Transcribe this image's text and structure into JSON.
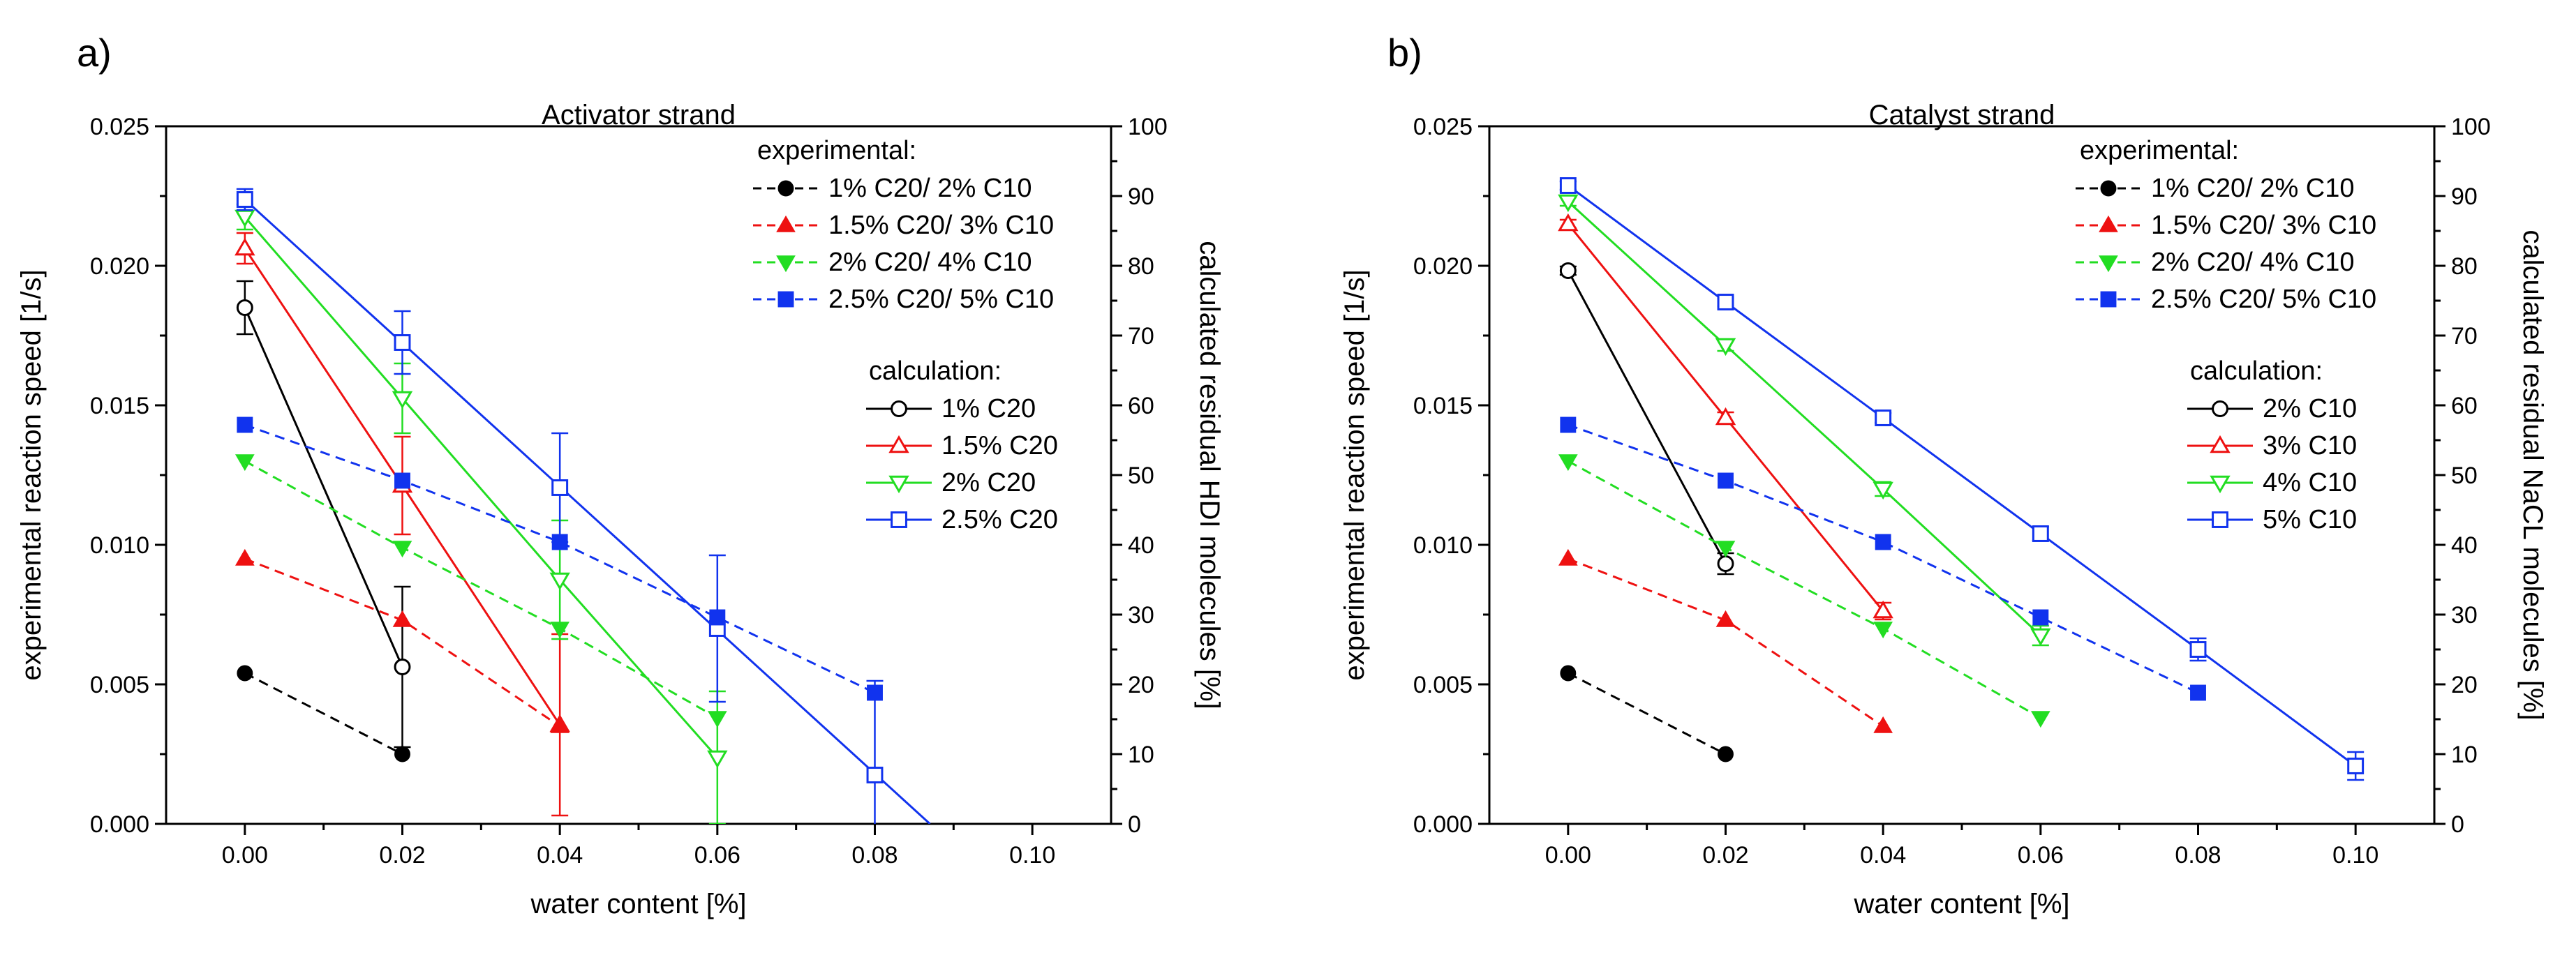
{
  "chart_data": [
    {
      "panel_label": "a)",
      "type": "line",
      "title": "Activator strand",
      "xlabel": "water content [%]",
      "ylabel": "experimental reaction speed [1/s]",
      "y2label": "calculated residual HDI molecules [%]",
      "xlim": [
        -0.01,
        0.11
      ],
      "ylim": [
        0,
        0.025
      ],
      "y2lim": [
        0,
        100
      ],
      "xticks": [
        0,
        0.02,
        0.04,
        0.06,
        0.08,
        0.1
      ],
      "xtick_labels": [
        "0.00",
        "0.02",
        "0.04",
        "0.06",
        "0.08",
        "0.10"
      ],
      "yticks": [
        0,
        0.005,
        0.01,
        0.015,
        0.02,
        0.025
      ],
      "ytick_labels": [
        "0.000",
        "0.005",
        "0.010",
        "0.015",
        "0.020",
        "0.025"
      ],
      "y2ticks": [
        0,
        10,
        20,
        30,
        40,
        50,
        60,
        70,
        80,
        90,
        100
      ],
      "y2tick_labels": [
        "0",
        "10",
        "20",
        "30",
        "40",
        "50",
        "60",
        "70",
        "80",
        "90",
        "100"
      ],
      "legend_experimental_title": "experimental:",
      "legend_calculation_title": "calculation:",
      "experimental": [
        {
          "name": "1% C20/ 2% C10",
          "color": "#000000",
          "marker": "circle",
          "x": [
            0,
            0.02
          ],
          "y": [
            0.0054,
            0.0025
          ]
        },
        {
          "name": "1.5% C20/ 3% C10",
          "color": "#ee1111",
          "marker": "triangle-up",
          "x": [
            0,
            0.02,
            0.04
          ],
          "y": [
            0.0095,
            0.0073,
            0.0035
          ]
        },
        {
          "name": "2% C20/ 4% C10",
          "color": "#22dd22",
          "marker": "triangle-down",
          "x": [
            0,
            0.02,
            0.04,
            0.06
          ],
          "y": [
            0.013,
            0.0099,
            0.007,
            0.0038
          ]
        },
        {
          "name": "2.5% C20/ 5% C10",
          "color": "#1133ee",
          "marker": "square",
          "x": [
            0,
            0.02,
            0.04,
            0.06,
            0.08
          ],
          "y": [
            0.0143,
            0.0123,
            0.0101,
            0.0074,
            0.0047
          ]
        }
      ],
      "calculation": [
        {
          "name": "1% C20",
          "color": "#000000",
          "marker": "circle",
          "x": [
            0,
            0.02
          ],
          "y2": [
            74,
            22.5
          ],
          "err": [
            3.8,
            11.5
          ]
        },
        {
          "name": "1.5% C20",
          "color": "#ee1111",
          "marker": "triangle-up",
          "x": [
            0,
            0.02,
            0.04
          ],
          "y2": [
            82.5,
            48.5,
            14.2
          ],
          "err": [
            2.2,
            7.0,
            13.0
          ]
        },
        {
          "name": "2% C20",
          "color": "#22dd22",
          "marker": "triangle-down",
          "x": [
            0,
            0.02,
            0.04,
            0.06
          ],
          "y2": [
            87,
            61,
            35,
            9.5
          ],
          "err": [
            1.8,
            5.0,
            8.5,
            9.5
          ]
        },
        {
          "name": "2.5% C20",
          "color": "#1133ee",
          "marker": "square",
          "x": [
            0,
            0.02,
            0.04,
            0.06,
            0.08
          ],
          "y2": [
            89.5,
            69,
            48.2,
            28,
            7
          ],
          "err": [
            1.5,
            4.5,
            7.8,
            10.5,
            13.5
          ],
          "line_x": [
            0,
            0.087
          ],
          "line_y2": [
            89.5,
            0
          ]
        }
      ]
    },
    {
      "panel_label": "b)",
      "type": "line",
      "title": "Catalyst strand",
      "xlabel": "water content [%]",
      "ylabel": "experimental reaction speed [1/s]",
      "y2label": "calculated residual NaCL molecules [%]",
      "xlim": [
        -0.01,
        0.11
      ],
      "ylim": [
        0,
        0.025
      ],
      "y2lim": [
        0,
        100
      ],
      "xticks": [
        0,
        0.02,
        0.04,
        0.06,
        0.08,
        0.1
      ],
      "xtick_labels": [
        "0.00",
        "0.02",
        "0.04",
        "0.06",
        "0.08",
        "0.10"
      ],
      "yticks": [
        0,
        0.005,
        0.01,
        0.015,
        0.02,
        0.025
      ],
      "ytick_labels": [
        "0.000",
        "0.005",
        "0.010",
        "0.015",
        "0.020",
        "0.025"
      ],
      "y2ticks": [
        0,
        10,
        20,
        30,
        40,
        50,
        60,
        70,
        80,
        90,
        100
      ],
      "y2tick_labels": [
        "0",
        "10",
        "20",
        "30",
        "40",
        "50",
        "60",
        "70",
        "80",
        "90",
        "100"
      ],
      "legend_experimental_title": "experimental:",
      "legend_calculation_title": "calculation:",
      "experimental": [
        {
          "name": "1% C20/ 2% C10",
          "color": "#000000",
          "marker": "circle",
          "x": [
            0,
            0.02
          ],
          "y": [
            0.0054,
            0.0025
          ]
        },
        {
          "name": "1.5% C20/ 3% C10",
          "color": "#ee1111",
          "marker": "triangle-up",
          "x": [
            0,
            0.02,
            0.04
          ],
          "y": [
            0.0095,
            0.0073,
            0.0035
          ]
        },
        {
          "name": "2% C20/ 4% C10",
          "color": "#22dd22",
          "marker": "triangle-down",
          "x": [
            0,
            0.02,
            0.04,
            0.06
          ],
          "y": [
            0.013,
            0.0099,
            0.007,
            0.0038
          ]
        },
        {
          "name": "2.5% C20/ 5% C10",
          "color": "#1133ee",
          "marker": "square",
          "x": [
            0,
            0.02,
            0.04,
            0.06,
            0.08
          ],
          "y": [
            0.0143,
            0.0123,
            0.0101,
            0.0074,
            0.0047
          ]
        }
      ],
      "calculation": [
        {
          "name": "2% C10",
          "color": "#000000",
          "marker": "circle",
          "x": [
            0,
            0.02
          ],
          "y2": [
            79.3,
            37.3
          ],
          "err": [
            0.6,
            1.5
          ]
        },
        {
          "name": "3% C10",
          "color": "#ee1111",
          "marker": "triangle-up",
          "x": [
            0,
            0.02,
            0.04
          ],
          "y2": [
            86,
            58.2,
            30.5
          ],
          "err": [
            0.6,
            0.8,
            1.2
          ]
        },
        {
          "name": "4% C10",
          "color": "#22dd22",
          "marker": "triangle-down",
          "x": [
            0,
            0.02,
            0.04,
            0.06
          ],
          "y2": [
            89.2,
            68.6,
            48,
            27
          ],
          "err": [
            0.6,
            0.8,
            1.0,
            1.4
          ]
        },
        {
          "name": "5% C10",
          "color": "#1133ee",
          "marker": "square",
          "x": [
            0,
            0.02,
            0.04,
            0.06,
            0.08,
            0.1
          ],
          "y2": [
            91.5,
            74.8,
            58.2,
            41.6,
            25,
            8.3
          ],
          "err": [
            0.6,
            0.6,
            0.7,
            1.0,
            1.6,
            2.0
          ]
        }
      ]
    }
  ]
}
